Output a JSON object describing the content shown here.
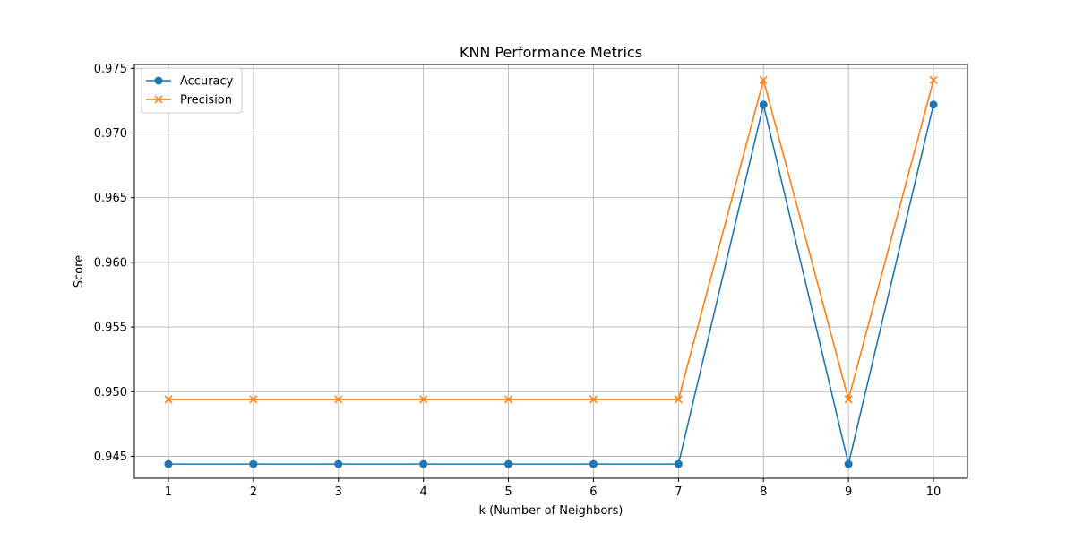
{
  "chart_data": {
    "type": "line",
    "title": "KNN Performance Metrics",
    "xlabel": "k (Number of Neighbors)",
    "ylabel": "Score",
    "x": [
      1,
      2,
      3,
      4,
      5,
      6,
      7,
      8,
      9,
      10
    ],
    "xlim": [
      0.6,
      10.4
    ],
    "ylim": [
      0.9433,
      0.9753
    ],
    "xticks": [
      1,
      2,
      3,
      4,
      5,
      6,
      7,
      8,
      9,
      10
    ],
    "yticks": [
      0.945,
      0.95,
      0.955,
      0.96,
      0.965,
      0.97,
      0.975
    ],
    "ytick_labels": [
      "0.945",
      "0.950",
      "0.955",
      "0.960",
      "0.965",
      "0.970",
      "0.975"
    ],
    "grid": true,
    "legend_position": "top-left",
    "series": [
      {
        "name": "Accuracy",
        "color": "#1f77b4",
        "marker": "circle",
        "values": [
          0.9444,
          0.9444,
          0.9444,
          0.9444,
          0.9444,
          0.9444,
          0.9444,
          0.9722,
          0.9444,
          0.9722
        ]
      },
      {
        "name": "Precision",
        "color": "#ff7f0e",
        "marker": "x",
        "values": [
          0.9494,
          0.9494,
          0.9494,
          0.9494,
          0.9494,
          0.9494,
          0.9494,
          0.9741,
          0.9494,
          0.9741
        ]
      }
    ]
  }
}
